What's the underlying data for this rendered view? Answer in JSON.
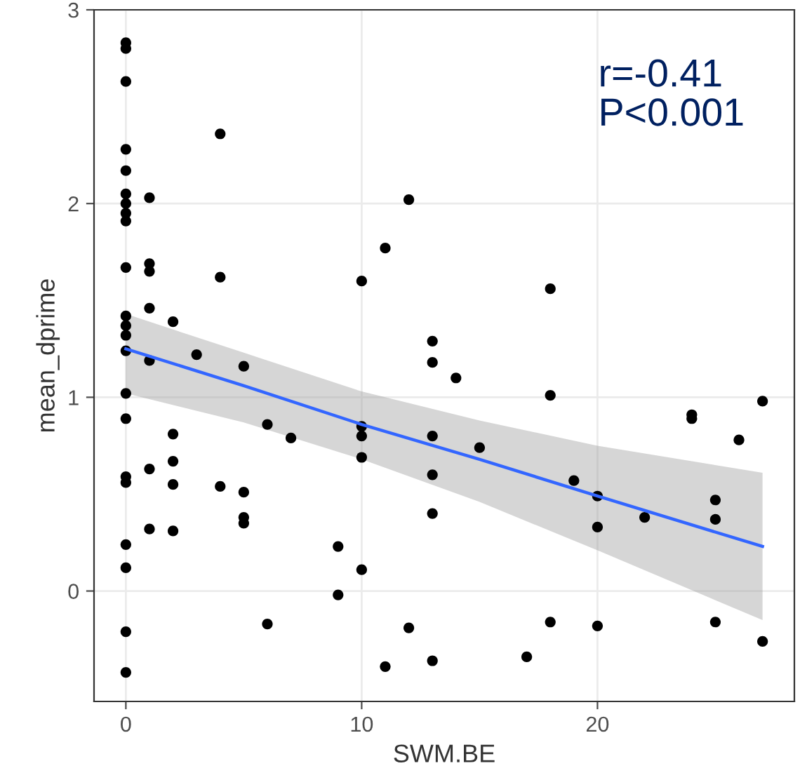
{
  "chart_data": {
    "type": "scatter",
    "xlabel": "SWM.BE",
    "ylabel": "mean_dprime",
    "xlim": [
      -1.35,
      28.35
    ],
    "ylim": [
      -0.57,
      3.0
    ],
    "xticks": [
      0,
      10,
      20
    ],
    "yticks": [
      0,
      1,
      2,
      3
    ],
    "grid": true,
    "annotations": [
      "r=-0.41\nP<0.001"
    ],
    "series": [
      {
        "color": "#000000",
        "marker": "circle",
        "x": [
          0,
          0,
          0,
          0,
          0,
          0,
          0,
          0,
          0,
          0,
          0,
          0,
          0,
          0,
          0,
          0,
          0,
          0,
          0,
          0,
          0,
          0,
          1,
          1,
          1,
          1,
          1,
          1,
          1,
          2,
          2,
          2,
          2,
          2,
          3,
          4,
          4,
          4,
          5,
          5,
          5,
          5,
          6,
          6,
          7,
          9,
          9,
          10,
          10,
          10,
          10,
          10,
          11,
          11,
          12,
          12,
          13,
          13,
          13,
          13,
          13,
          13,
          14,
          15,
          17,
          18,
          18,
          18,
          19,
          20,
          20,
          20,
          22,
          24,
          24,
          25,
          25,
          25,
          26,
          27,
          27
        ],
        "values": [
          2.83,
          2.8,
          2.63,
          2.28,
          2.17,
          2.05,
          2.0,
          1.95,
          1.91,
          1.67,
          1.42,
          1.37,
          1.32,
          1.24,
          1.02,
          0.89,
          0.59,
          0.56,
          0.24,
          0.12,
          -0.21,
          -0.42,
          2.03,
          1.69,
          1.65,
          1.46,
          1.19,
          0.63,
          0.32,
          1.39,
          0.81,
          0.67,
          0.55,
          0.31,
          1.22,
          2.36,
          1.62,
          0.54,
          1.16,
          0.51,
          0.38,
          0.35,
          0.86,
          -0.17,
          0.79,
          0.23,
          -0.02,
          1.6,
          0.85,
          0.8,
          0.69,
          0.11,
          1.77,
          -0.39,
          2.02,
          -0.19,
          1.29,
          1.18,
          0.8,
          0.6,
          0.4,
          -0.36,
          1.1,
          0.74,
          -0.34,
          1.56,
          1.01,
          -0.16,
          0.57,
          0.49,
          0.33,
          -0.18,
          0.38,
          0.91,
          0.89,
          0.47,
          0.37,
          -0.16,
          0.78,
          0.98,
          -0.26
        ]
      },
      {
        "type": "line",
        "color": "#3366ff",
        "x": [
          0,
          5,
          10,
          15,
          20,
          27
        ],
        "values": [
          1.25,
          1.06,
          0.86,
          0.68,
          0.49,
          0.23
        ],
        "lower": [
          1.02,
          0.87,
          0.68,
          0.46,
          0.21,
          -0.15
        ],
        "upper": [
          1.43,
          1.23,
          1.03,
          0.88,
          0.75,
          0.61
        ]
      }
    ]
  }
}
